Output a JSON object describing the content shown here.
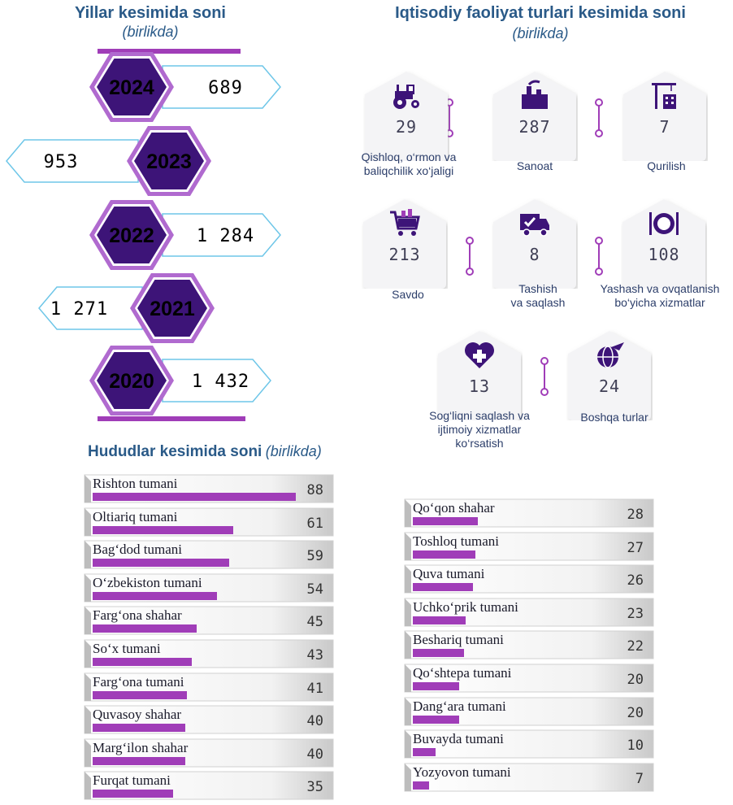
{
  "years_section": {
    "title": "Yillar kesimida soni",
    "subtitle": "(birlikda)"
  },
  "activity_section": {
    "title": "Iqtisodiy faoliyat turlari kesimida soni",
    "subtitle": "(birlikda)"
  },
  "regions_section": {
    "title": "Hududlar kesimida soni",
    "subtitle": "(birlikda)"
  },
  "colors": {
    "purple_dark": "#3d1478",
    "purple_bar": "#a03db8",
    "title_blue": "#2a5a88",
    "arrow_outline": "#6ec6e8"
  },
  "chart_data": [
    {
      "type": "bar",
      "title": "Yillar kesimida soni",
      "subtitle": "(birlikda)",
      "categories": [
        "2024",
        "2023",
        "2022",
        "2021",
        "2020"
      ],
      "values": [
        689,
        953,
        1284,
        1271,
        1432
      ],
      "value_labels": [
        "689",
        "953",
        "1 284",
        "1 271",
        "1 432"
      ]
    },
    {
      "type": "table",
      "title": "Iqtisodiy faoliyat turlari kesimida soni",
      "subtitle": "(birlikda)",
      "items": [
        {
          "label_lines": [
            "Qishloq, o‘rmon va",
            "baliqchilik xo‘jaligi"
          ],
          "value": "29",
          "icon": "tractor-icon"
        },
        {
          "label_lines": [
            "Sanoat"
          ],
          "value": "287",
          "icon": "factory-icon"
        },
        {
          "label_lines": [
            "Qurilish"
          ],
          "value": "7",
          "icon": "crane-icon"
        },
        {
          "label_lines": [
            "Savdo"
          ],
          "value": "213",
          "icon": "shopping-cart-icon"
        },
        {
          "label_lines": [
            "Tashish",
            "va saqlash"
          ],
          "value": "8",
          "icon": "truck-icon"
        },
        {
          "label_lines": [
            "Yashash va ovqatlanish",
            "bo‘yicha xizmatlar"
          ],
          "value": "108",
          "icon": "plate-cutlery-icon"
        },
        {
          "label_lines": [
            "Sog‘liqni saqlash va",
            "ijtimoiy xizmatlar",
            "ko‘rsatish"
          ],
          "value": "13",
          "icon": "heart-cross-icon"
        },
        {
          "label_lines": [
            "Boshqa turlar"
          ],
          "value": "24",
          "icon": "globe-plane-icon"
        }
      ]
    },
    {
      "type": "bar",
      "title": "Hududlar kesimida soni",
      "subtitle": "(birlikda)",
      "categories": [
        "Rishton tumani",
        "Oltiariq tumani",
        "Bag‘dod tumani",
        "O‘zbekiston tumani",
        "Farg‘ona shahar",
        "So‘x tumani",
        "Farg‘ona tumani",
        "Quvasoy shahar",
        "Marg‘ilon shahar",
        "Furqat tumani",
        "Qo‘qon shahar",
        "Toshloq tumani",
        "Quva tumani",
        "Uchko‘prik tumani",
        "Beshariq tumani",
        "Qo‘shtepa tumani",
        "Dang‘ara tumani",
        "Buvayda tumani",
        "Yozyovon tumani"
      ],
      "values": [
        88,
        61,
        59,
        54,
        45,
        43,
        41,
        40,
        40,
        35,
        28,
        27,
        26,
        23,
        22,
        20,
        20,
        10,
        7
      ],
      "xlim": [
        0,
        88
      ]
    }
  ]
}
